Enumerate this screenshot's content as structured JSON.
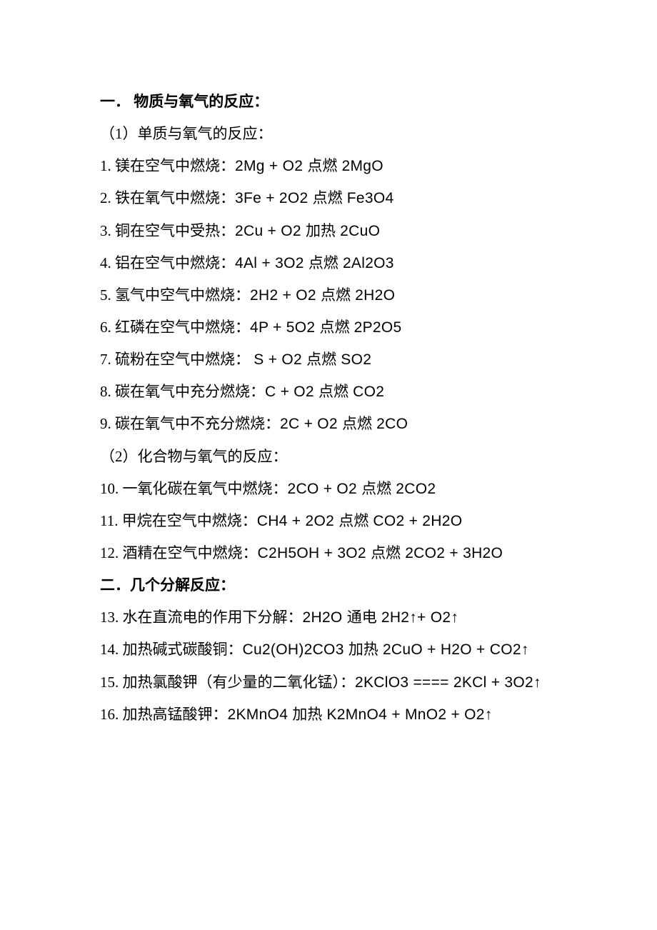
{
  "heading1": "一．  物质与氧气的反应：",
  "sub1": "（1）单质与氧气的反应：",
  "lines1": [
    {
      "zh": "1.  镁在空气中燃烧：",
      "eq": "2Mg + O2  点燃  2MgO"
    },
    {
      "zh": "2.  铁在氧气中燃烧：",
      "eq": "3Fe + 2O2  点燃  Fe3O4"
    },
    {
      "zh": "3.  铜在空气中受热：",
      "eq": "2Cu + O2  加热  2CuO"
    },
    {
      "zh": "4.  铝在空气中燃烧：",
      "eq": "4Al + 3O2  点燃  2Al2O3"
    },
    {
      "zh": "5.  氢气中空气中燃烧：",
      "eq": "2H2 + O2  点燃  2H2O"
    },
    {
      "zh": "6.  红磷在空气中燃烧：",
      "eq": "4P + 5O2  点燃  2P2O5"
    },
    {
      "zh": "7.  硫粉在空气中燃烧：  ",
      "eq": "S + O2  点燃  SO2"
    },
    {
      "zh": "8.  碳在氧气中充分燃烧：",
      "eq": "C + O2  点燃  CO2"
    },
    {
      "zh": "9.  碳在氧气中不充分燃烧：",
      "eq": "2C + O2  点燃  2CO"
    }
  ],
  "sub2": "（2）化合物与氧气的反应：",
  "lines2": [
    {
      "zh": "10.  一氧化碳在氧气中燃烧：",
      "eq": "2CO + O2  点燃  2CO2"
    },
    {
      "zh": "11.  甲烷在空气中燃烧：",
      "eq": "CH4 + 2O2  点燃  CO2 + 2H2O"
    },
    {
      "zh": "12.  酒精在空气中燃烧：",
      "eq": "C2H5OH + 3O2  点燃  2CO2 + 3H2O"
    }
  ],
  "heading2": "二．几个分解反应：",
  "lines3": [
    {
      "zh": "13.  水在直流电的作用下分解：",
      "eq": "2H2O  通电  2H2↑+ O2↑"
    },
    {
      "zh": "14.  加热碱式碳酸铜：",
      "eq": "Cu2(OH)2CO3  加热  2CuO + H2O + CO2↑"
    },
    {
      "zh": "15.  加热氯酸钾（有少量的二氧化锰）：",
      "eq": "2KClO3 ==== 2KCl + 3O2↑"
    },
    {
      "zh": "16.  加热高锰酸钾：",
      "eq": "2KMnO4  加热  K2MnO4 + MnO2 + O2↑"
    }
  ]
}
